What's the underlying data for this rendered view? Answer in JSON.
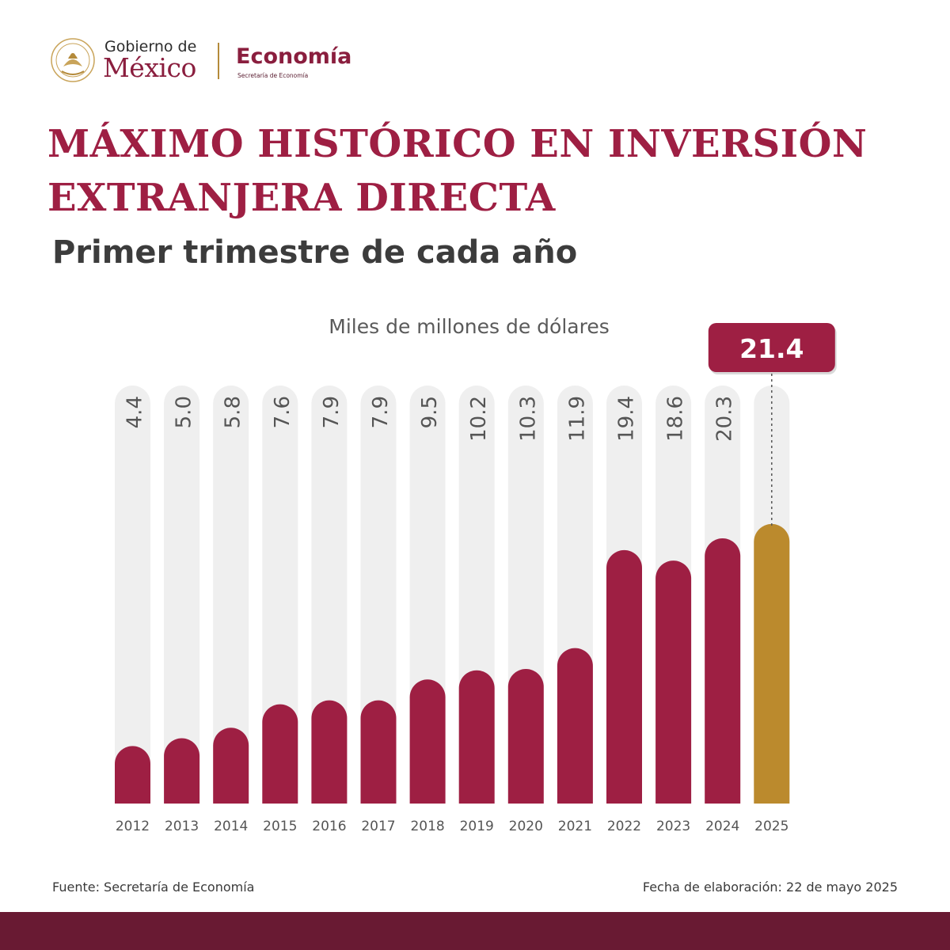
{
  "header": {
    "gobierno_line1": "Gobierno de",
    "gobierno_line2": "México",
    "agency_name": "Economía",
    "agency_subtitle": "Secretaría de Economía",
    "seal_icon": "mexico-coat-of-arms-icon"
  },
  "title": "MÁXIMO HISTÓRICO EN INVERSIÓN EXTRANJERA DIRECTA",
  "subtitle": "Primer trimestre de cada año",
  "footer": {
    "source": "Fuente: Secretaría de Economía",
    "date": "Fecha de elaboración: 22 de mayo 2025"
  },
  "colors": {
    "bar": "#9e1f43",
    "highlight": "#bb8a2d",
    "track": "#efefef",
    "title": "#9e1f43",
    "band": "#691a33"
  },
  "chart_data": {
    "type": "bar",
    "ylabel": "Miles de millones de dólares",
    "ylim": [
      0,
      32
    ],
    "grid": false,
    "categories": [
      "2012",
      "2013",
      "2014",
      "2015",
      "2016",
      "2017",
      "2018",
      "2019",
      "2020",
      "2021",
      "2022",
      "2023",
      "2024",
      "2025"
    ],
    "values": [
      4.4,
      5.0,
      5.8,
      7.6,
      7.9,
      7.9,
      9.5,
      10.2,
      10.3,
      11.9,
      19.4,
      18.6,
      20.3,
      21.4
    ],
    "value_labels": [
      "4.4",
      "5.0",
      "5.8",
      "7.6",
      "7.9",
      "7.9",
      "9.5",
      "10.2",
      "10.3",
      "11.9",
      "19.4",
      "18.6",
      "20.3",
      "21.4"
    ],
    "highlight_index": 13
  }
}
